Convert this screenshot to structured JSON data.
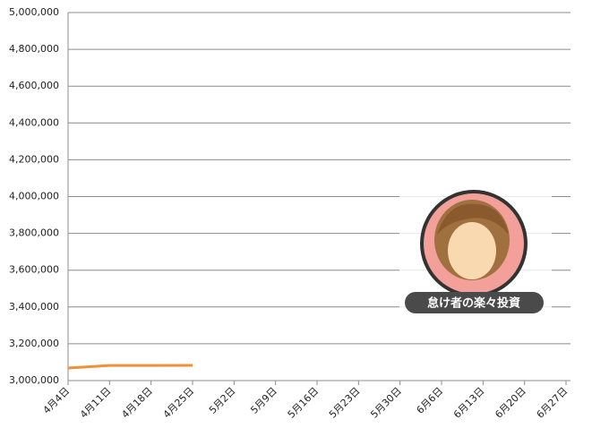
{
  "chart_data": {
    "type": "line",
    "categories": [
      "4月4日",
      "4月11日",
      "4月18日",
      "4月25日",
      "5月2日",
      "5月9日",
      "5月16日",
      "5月23日",
      "5月30日",
      "6月6日",
      "6月13日",
      "6月20日",
      "6月27日"
    ],
    "values": [
      3068000,
      3082000,
      3082000,
      3083000,
      null,
      null,
      null,
      null,
      null,
      null,
      null,
      null,
      null
    ],
    "color": "#f0903a",
    "ylim": [
      3000000,
      5000000
    ],
    "yticks": [
      {
        "value": 3000000,
        "label": "3,000,000"
      },
      {
        "value": 3200000,
        "label": "3,200,000"
      },
      {
        "value": 3400000,
        "label": "3,400,000"
      },
      {
        "value": 3600000,
        "label": "3,600,000"
      },
      {
        "value": 3800000,
        "label": "3,800,000"
      },
      {
        "value": 4000000,
        "label": "4,000,000"
      },
      {
        "value": 4200000,
        "label": "4,200,000"
      },
      {
        "value": 4400000,
        "label": "4,400,000"
      },
      {
        "value": 4600000,
        "label": "4,600,000"
      },
      {
        "value": 4800000,
        "label": "4,800,000"
      },
      {
        "value": 5000000,
        "label": "5,000,000"
      }
    ],
    "grid": true
  },
  "watermark": "怠け者の楽々投資"
}
